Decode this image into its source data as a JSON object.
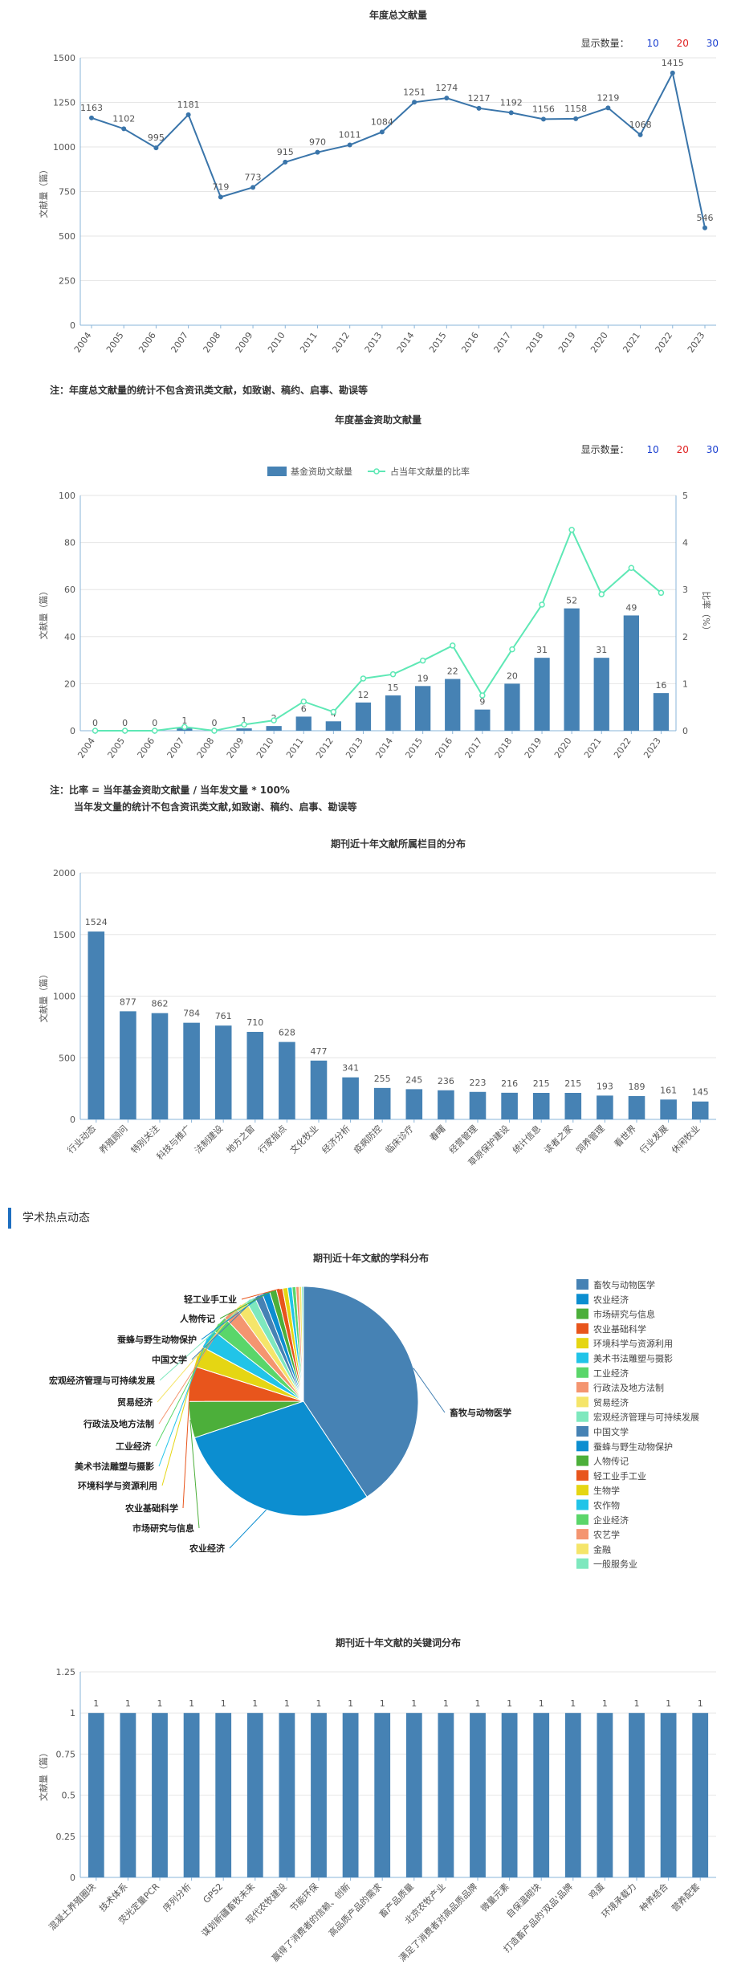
{
  "count_selector": {
    "label": "显示数量：",
    "options": [
      "10",
      "20",
      "30"
    ],
    "colors": [
      "#1a3fd0",
      "#e02020",
      "#1a3fd0"
    ]
  },
  "notes": {
    "annual_total": "注：年度总文献量的统计不包含资讯类文献，如致谢、稿约、启事、勘误等",
    "fund_line1": "注：比率 = 当年基金资助文献量 / 当年发文量 * 100%",
    "fund_line2": "当年发文量的统计不包含资讯类文献,如致谢、稿约、启事、勘误等"
  },
  "section": {
    "academic_hot": "学术热点动态"
  },
  "colors": {
    "bar": "#4682b4",
    "line": "#3a75aa",
    "ratio": "#5ee8b5",
    "grid": "#e6e6e6",
    "axis": "#8ab4d8"
  },
  "chart_data": [
    {
      "id": "annual",
      "type": "line",
      "title": "年度总文献量",
      "ylabel": "文献量（篇）",
      "ylim": [
        0,
        1500
      ],
      "yticks": [
        0,
        250,
        500,
        750,
        1000,
        1250,
        1500
      ],
      "categories": [
        "2004",
        "2005",
        "2006",
        "2007",
        "2008",
        "2009",
        "2010",
        "2011",
        "2012",
        "2013",
        "2014",
        "2015",
        "2016",
        "2017",
        "2018",
        "2019",
        "2020",
        "2021",
        "2022",
        "2023"
      ],
      "values": [
        1163,
        1102,
        995,
        1181,
        719,
        773,
        915,
        970,
        1011,
        1084,
        1251,
        1274,
        1217,
        1192,
        1156,
        1158,
        1219,
        1068,
        1415,
        546
      ]
    },
    {
      "id": "fund",
      "type": "bar",
      "title": "年度基金资助文献量",
      "ylabel": "文献量（篇）",
      "y2label": "比率（%）",
      "ylim": [
        0,
        100
      ],
      "yticks": [
        0,
        20,
        40,
        60,
        80,
        100
      ],
      "y2lim": [
        0,
        5
      ],
      "y2ticks": [
        0,
        1,
        2,
        3,
        4,
        5
      ],
      "legend": [
        "基金资助文献量",
        "占当年文献量的比率"
      ],
      "categories": [
        "2004",
        "2005",
        "2006",
        "2007",
        "2008",
        "2009",
        "2010",
        "2011",
        "2012",
        "2013",
        "2014",
        "2015",
        "2016",
        "2017",
        "2018",
        "2019",
        "2020",
        "2021",
        "2022",
        "2023"
      ],
      "values": [
        0,
        0,
        0,
        1,
        0,
        1,
        2,
        6,
        4,
        12,
        15,
        19,
        22,
        9,
        20,
        31,
        52,
        31,
        49,
        16
      ],
      "ratio": [
        0,
        0,
        0,
        0.08,
        0,
        0.13,
        0.22,
        0.62,
        0.4,
        1.11,
        1.2,
        1.49,
        1.81,
        0.75,
        1.73,
        2.68,
        4.27,
        2.9,
        3.46,
        2.93
      ]
    },
    {
      "id": "columns",
      "type": "bar",
      "title": "期刊近十年文献所属栏目的分布",
      "ylabel": "文献量（篇）",
      "ylim": [
        0,
        2000
      ],
      "yticks": [
        0,
        500,
        1000,
        1500,
        2000
      ],
      "categories": [
        "行业动态",
        "养殖顾问",
        "特别关注",
        "科技与推广",
        "法制建设",
        "地方之窗",
        "行家指点",
        "文化牧业",
        "经济分析",
        "疫病防控",
        "临床诊疗",
        "春曙",
        "经营管理",
        "草原保护建设",
        "统计信息",
        "读者之家",
        "饲养管理",
        "看世界",
        "行业发展",
        "休闲牧业"
      ],
      "values": [
        1524,
        877,
        862,
        784,
        761,
        710,
        628,
        477,
        341,
        255,
        245,
        236,
        223,
        216,
        215,
        215,
        193,
        189,
        161,
        145
      ]
    },
    {
      "id": "subjects",
      "type": "pie",
      "title": "期刊近十年文献的学科分布",
      "legend": [
        "畜牧与动物医学",
        "农业经济",
        "市场研究与信息",
        "农业基础科学",
        "环境科学与资源利用",
        "美术书法雕塑与摄影",
        "工业经济",
        "行政法及地方法制",
        "贸易经济",
        "宏观经济管理与可持续发展",
        "中国文学",
        "蚕蜂与野生动物保护",
        "人物传记",
        "轻工业手工业",
        "生物学",
        "农作物",
        "企业经济",
        "农艺学",
        "金融",
        "一般服务业"
      ],
      "values": [
        4600,
        3300,
        580,
        560,
        330,
        310,
        270,
        230,
        190,
        150,
        130,
        120,
        110,
        100,
        80,
        70,
        60,
        50,
        40,
        30
      ],
      "slice_colors": [
        "#4682b4",
        "#0c8ed0",
        "#4caf3a",
        "#e8551c",
        "#e5d613",
        "#21c4e8",
        "#5ad66a",
        "#f49570",
        "#f5e56a",
        "#7ee8be",
        "#4682b4",
        "#0c8ed0",
        "#4caf3a",
        "#e8551c",
        "#e5d613",
        "#21c4e8",
        "#5ad66a",
        "#f49570",
        "#f5e56a",
        "#7ee8be"
      ],
      "callouts": [
        "畜牧与动物医学",
        "农业经济",
        "市场研究与信息",
        "农业基础科学",
        "环境科学与资源利用",
        "美术书法雕塑与摄影",
        "工业经济",
        "行政法及地方法制",
        "贸易经济",
        "宏观经济管理与可持续发展",
        "中国文学",
        "蚕蜂与野生动物保护",
        "人物传记",
        "轻工业手工业"
      ]
    },
    {
      "id": "keywords",
      "type": "bar",
      "title": "期刊近十年文献的关键词分布",
      "ylabel": "文献量（篇）",
      "ylim": [
        0,
        1.25
      ],
      "yticks": [
        0,
        0.25,
        0.5,
        0.75,
        1,
        1.25
      ],
      "categories": [
        "混凝土养殖圈块",
        "技术体系",
        "荧光定量PCR",
        "序列分析",
        "GPS2",
        "谋划新疆畜牧未来",
        "现代农牧建设",
        "节能环保",
        "赢得了消费者的信赖、创新",
        "高品质产品的需求",
        "畜产品质量",
        "北京农牧产业",
        "满足了消费者对高品质品牌",
        "微量元素",
        "自保温砌块",
        "打造畜产品的'双品'品牌",
        "鸡蛋",
        "环境承载力",
        "种养结合",
        "营养配套"
      ],
      "values": [
        1,
        1,
        1,
        1,
        1,
        1,
        1,
        1,
        1,
        1,
        1,
        1,
        1,
        1,
        1,
        1,
        1,
        1,
        1,
        1
      ]
    }
  ]
}
